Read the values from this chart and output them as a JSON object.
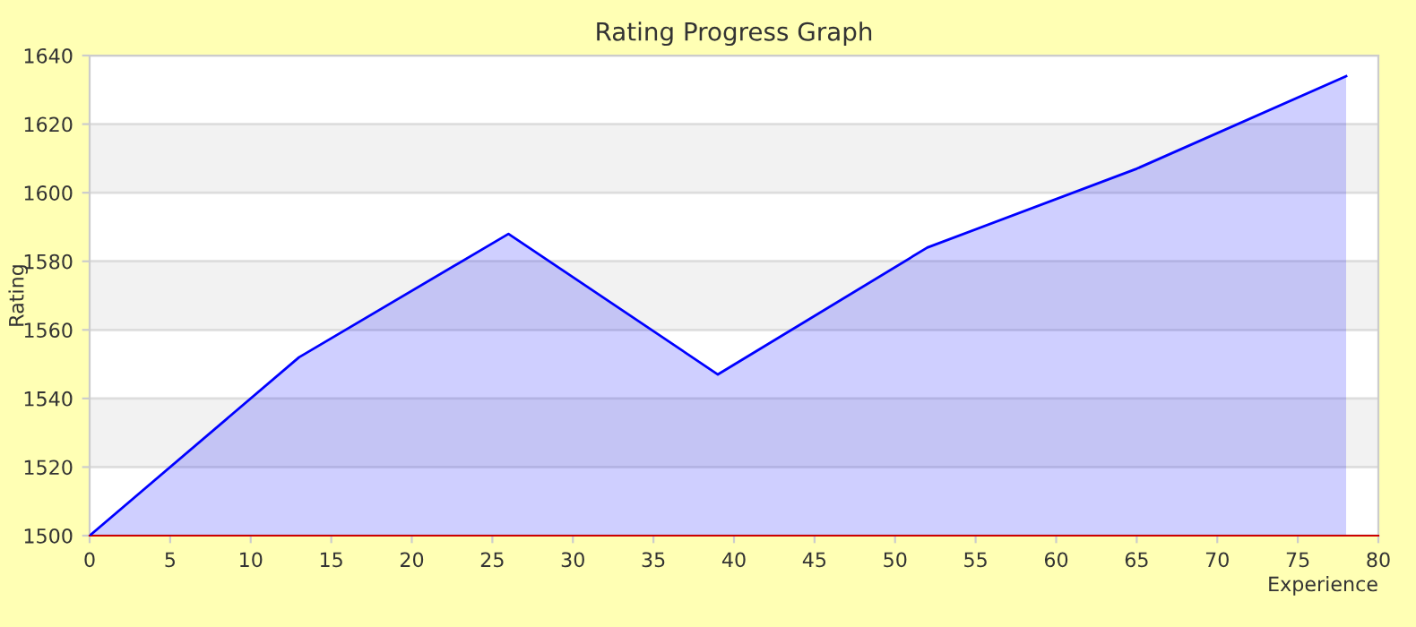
{
  "chart_data": {
    "type": "area",
    "title": "Rating Progress Graph",
    "xlabel": "Experience",
    "ylabel": "Rating",
    "x": [
      0,
      13,
      26,
      39,
      52,
      65,
      78
    ],
    "series": [
      {
        "color": "#0000ff",
        "values": [
          1500,
          1552,
          1588,
          1547,
          1584,
          1607,
          1634
        ]
      }
    ],
    "xlim": [
      0,
      80
    ],
    "xticks": [
      0,
      5,
      10,
      15,
      20,
      25,
      30,
      35,
      40,
      45,
      50,
      55,
      60,
      65,
      70,
      75,
      80
    ],
    "ylim": [
      1500,
      1640
    ],
    "yticks": [
      1500,
      1520,
      1540,
      1560,
      1580,
      1600,
      1620,
      1640
    ],
    "grid": "y",
    "marker": "none",
    "line_style": "solid"
  }
}
